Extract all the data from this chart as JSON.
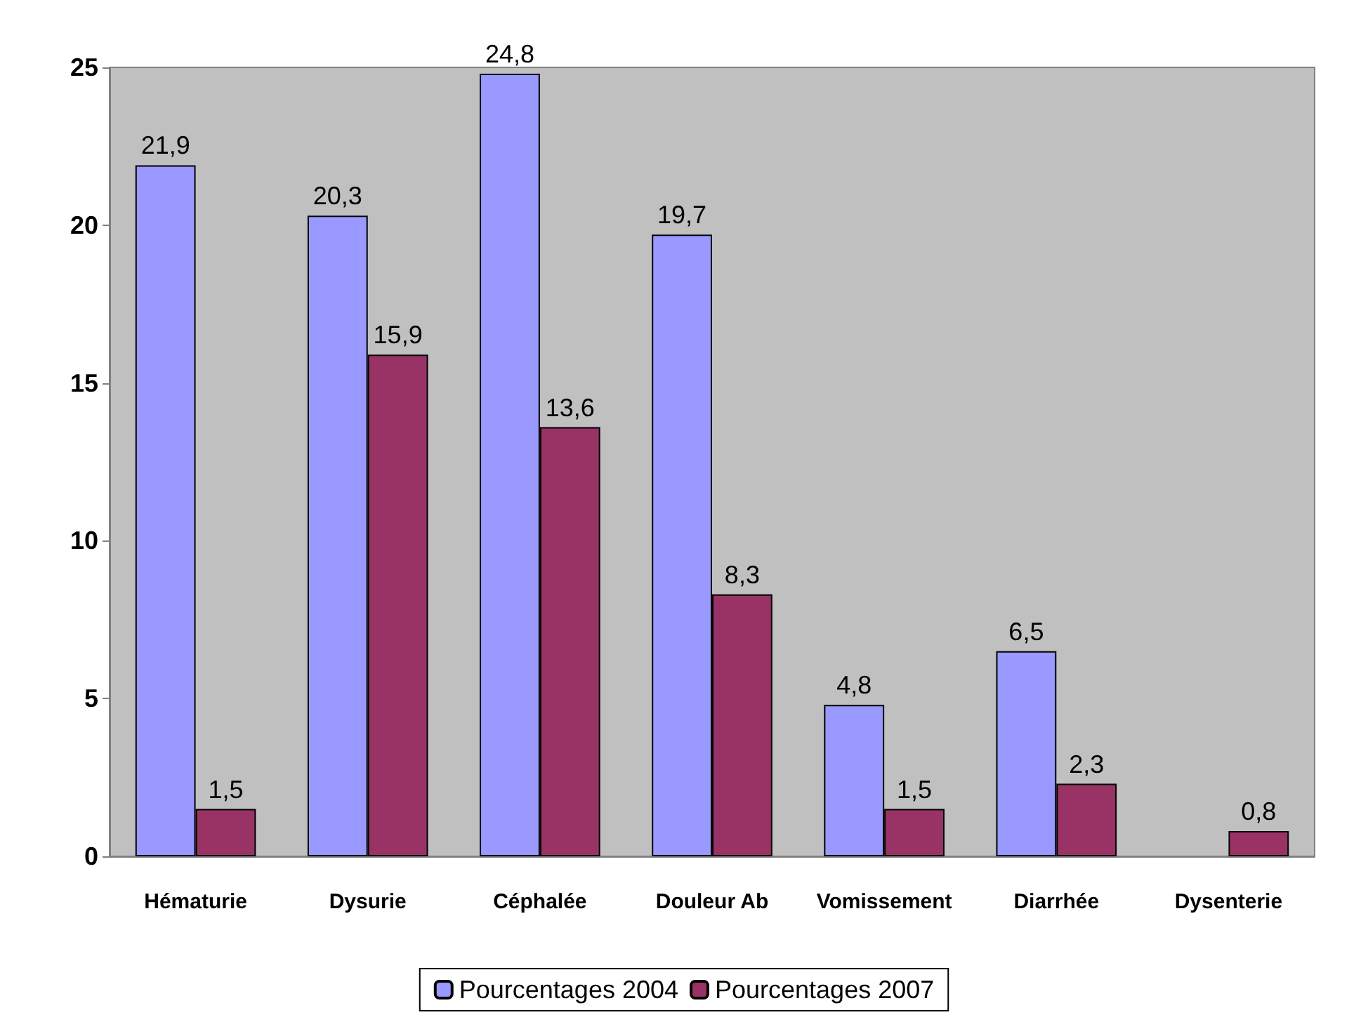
{
  "chart_data": {
    "type": "bar",
    "categories": [
      "Hématurie",
      "Dysurie",
      "Céphalée",
      "Douleur Ab",
      "Vomissement",
      "Diarrhée",
      "Dysenterie"
    ],
    "series": [
      {
        "name": "Pourcentages 2004",
        "color": "#9999ff",
        "values": [
          21.9,
          20.3,
          24.8,
          19.7,
          4.8,
          6.5,
          null
        ],
        "value_labels": [
          "21,9",
          "20,3",
          "24,8",
          "19,7",
          "4,8",
          "6,5",
          null
        ]
      },
      {
        "name": "Pourcentages 2007",
        "color": "#993366",
        "values": [
          1.5,
          15.9,
          13.6,
          8.3,
          1.5,
          2.3,
          0.8
        ],
        "value_labels": [
          "1,5",
          "15,9",
          "13,6",
          "8,3",
          "1,5",
          "2,3",
          "0,8"
        ]
      }
    ],
    "ylim": [
      0,
      25
    ],
    "yticks": [
      0,
      5,
      10,
      15,
      20,
      25
    ],
    "grid": false,
    "legend": "bottom"
  }
}
